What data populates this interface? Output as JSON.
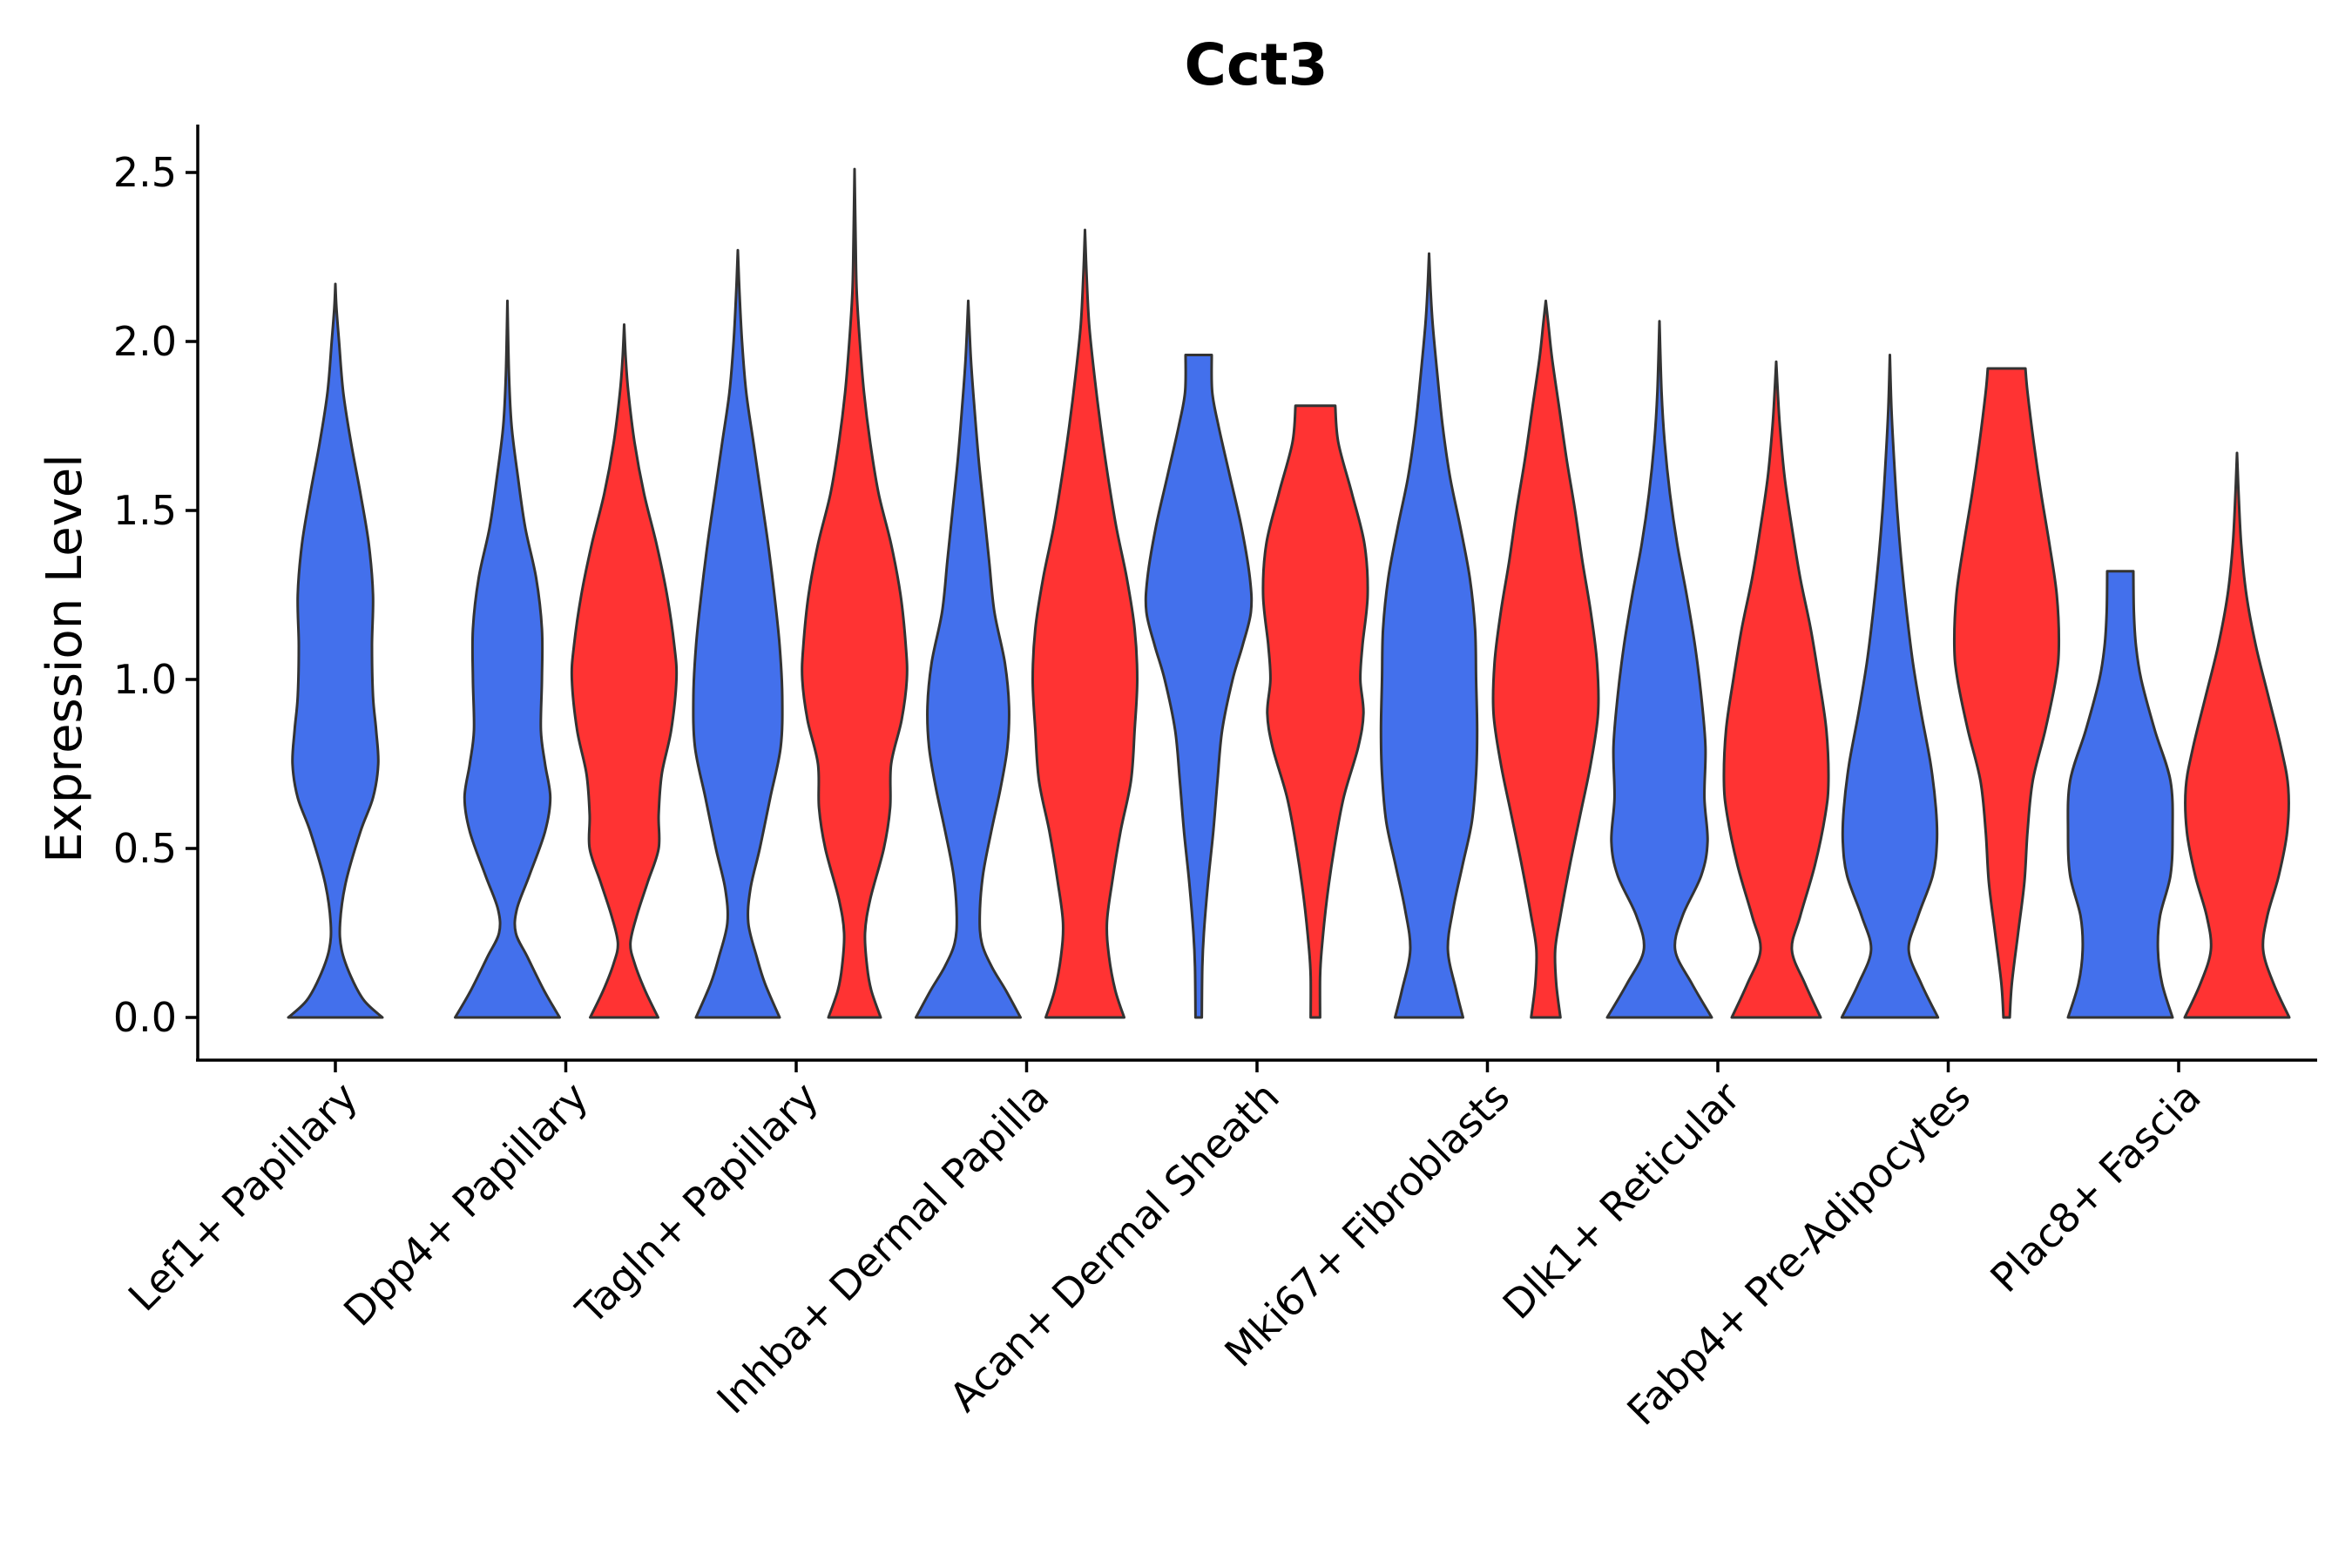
{
  "chart_data": {
    "type": "violin",
    "title": "Cct3",
    "xlabel": "",
    "ylabel": "Expression Level",
    "ylim": [
      -0.12,
      2.63
    ],
    "yticks": [
      0.0,
      0.5,
      1.0,
      1.5,
      2.0,
      2.5
    ],
    "ytick_labels": [
      "0.0",
      "0.5",
      "1.0",
      "1.5",
      "2.0",
      "2.5"
    ],
    "categories": [
      "Lef1+ Papillary",
      "Dpp4+ Papillary",
      "Tagln+ Papillary",
      "Inhba+ Dermal Papilla",
      "Acan+ Dermal Sheath",
      "Mki67+ Fibroblasts",
      "Dlk1+ Reticular",
      "Fabp4+ Pre-Adipocytes",
      "Plac8+ Fascia"
    ],
    "groups": [
      {
        "name": "blue",
        "color": "#4370EC"
      },
      {
        "name": "red",
        "color": "#FF3333"
      }
    ],
    "violins": [
      {
        "category": "Lef1+ Papillary",
        "group": "blue",
        "ymax": 2.17,
        "profile": [
          [
            0,
            0.9
          ],
          [
            0.05,
            0.55
          ],
          [
            0.12,
            0.3
          ],
          [
            0.2,
            0.12
          ],
          [
            0.28,
            0.09
          ],
          [
            0.4,
            0.2
          ],
          [
            0.55,
            0.48
          ],
          [
            0.65,
            0.72
          ],
          [
            0.75,
            0.82
          ],
          [
            0.85,
            0.78
          ],
          [
            0.95,
            0.72
          ],
          [
            1.1,
            0.7
          ],
          [
            1.25,
            0.72
          ],
          [
            1.4,
            0.64
          ],
          [
            1.55,
            0.48
          ],
          [
            1.7,
            0.3
          ],
          [
            1.85,
            0.15
          ],
          [
            2.0,
            0.07
          ],
          [
            2.1,
            0.02
          ],
          [
            2.17,
            0
          ]
        ]
      },
      {
        "category": "Dpp4+ Papillary",
        "group": "blue",
        "ymax": 2.12,
        "profile": [
          [
            0,
            1.0
          ],
          [
            0.08,
            0.7
          ],
          [
            0.18,
            0.38
          ],
          [
            0.25,
            0.16
          ],
          [
            0.32,
            0.18
          ],
          [
            0.42,
            0.42
          ],
          [
            0.55,
            0.72
          ],
          [
            0.65,
            0.82
          ],
          [
            0.75,
            0.72
          ],
          [
            0.85,
            0.64
          ],
          [
            1.0,
            0.66
          ],
          [
            1.15,
            0.66
          ],
          [
            1.3,
            0.55
          ],
          [
            1.45,
            0.34
          ],
          [
            1.6,
            0.2
          ],
          [
            1.75,
            0.08
          ],
          [
            1.9,
            0.03
          ],
          [
            2.12,
            0
          ]
        ]
      },
      {
        "category": "Dpp4+ Papillary",
        "group": "red",
        "ymax": 2.05,
        "profile": [
          [
            0,
            0.65
          ],
          [
            0.08,
            0.4
          ],
          [
            0.16,
            0.2
          ],
          [
            0.22,
            0.12
          ],
          [
            0.3,
            0.24
          ],
          [
            0.4,
            0.45
          ],
          [
            0.5,
            0.66
          ],
          [
            0.6,
            0.66
          ],
          [
            0.72,
            0.72
          ],
          [
            0.85,
            0.9
          ],
          [
            1.0,
            1.0
          ],
          [
            1.1,
            0.96
          ],
          [
            1.25,
            0.82
          ],
          [
            1.4,
            0.62
          ],
          [
            1.55,
            0.38
          ],
          [
            1.7,
            0.2
          ],
          [
            1.85,
            0.08
          ],
          [
            1.95,
            0.03
          ],
          [
            2.05,
            0
          ]
        ]
      },
      {
        "category": "Tagln+ Papillary",
        "group": "blue",
        "ymax": 2.27,
        "profile": [
          [
            0,
            0.8
          ],
          [
            0.1,
            0.52
          ],
          [
            0.18,
            0.36
          ],
          [
            0.28,
            0.2
          ],
          [
            0.38,
            0.24
          ],
          [
            0.5,
            0.42
          ],
          [
            0.65,
            0.62
          ],
          [
            0.8,
            0.82
          ],
          [
            0.95,
            0.85
          ],
          [
            1.1,
            0.8
          ],
          [
            1.25,
            0.7
          ],
          [
            1.4,
            0.58
          ],
          [
            1.55,
            0.44
          ],
          [
            1.7,
            0.3
          ],
          [
            1.85,
            0.16
          ],
          [
            2.0,
            0.08
          ],
          [
            2.15,
            0.03
          ],
          [
            2.27,
            0
          ]
        ]
      },
      {
        "category": "Tagln+ Papillary",
        "group": "red",
        "ymax": 2.51,
        "profile": [
          [
            0,
            0.5
          ],
          [
            0.08,
            0.32
          ],
          [
            0.15,
            0.24
          ],
          [
            0.25,
            0.2
          ],
          [
            0.35,
            0.3
          ],
          [
            0.5,
            0.56
          ],
          [
            0.62,
            0.68
          ],
          [
            0.75,
            0.7
          ],
          [
            0.88,
            0.9
          ],
          [
            1.0,
            1.0
          ],
          [
            1.1,
            0.98
          ],
          [
            1.25,
            0.88
          ],
          [
            1.4,
            0.7
          ],
          [
            1.55,
            0.46
          ],
          [
            1.7,
            0.3
          ],
          [
            1.85,
            0.18
          ],
          [
            2.0,
            0.1
          ],
          [
            2.15,
            0.04
          ],
          [
            2.3,
            0.02
          ],
          [
            2.51,
            0
          ]
        ]
      },
      {
        "category": "Inhba+ Dermal Papilla",
        "group": "blue",
        "ymax": 2.12,
        "profile": [
          [
            0,
            1.0
          ],
          [
            0.08,
            0.72
          ],
          [
            0.15,
            0.45
          ],
          [
            0.22,
            0.26
          ],
          [
            0.3,
            0.22
          ],
          [
            0.42,
            0.28
          ],
          [
            0.55,
            0.44
          ],
          [
            0.68,
            0.62
          ],
          [
            0.8,
            0.75
          ],
          [
            0.92,
            0.78
          ],
          [
            1.05,
            0.7
          ],
          [
            1.2,
            0.5
          ],
          [
            1.35,
            0.4
          ],
          [
            1.5,
            0.3
          ],
          [
            1.65,
            0.2
          ],
          [
            1.8,
            0.12
          ],
          [
            1.95,
            0.05
          ],
          [
            2.12,
            0
          ]
        ]
      },
      {
        "category": "Inhba+ Dermal Papilla",
        "group": "red",
        "ymax": 2.33,
        "profile": [
          [
            0,
            0.75
          ],
          [
            0.08,
            0.58
          ],
          [
            0.18,
            0.46
          ],
          [
            0.28,
            0.42
          ],
          [
            0.4,
            0.52
          ],
          [
            0.55,
            0.68
          ],
          [
            0.7,
            0.88
          ],
          [
            0.85,
            0.95
          ],
          [
            1.0,
            1.0
          ],
          [
            1.15,
            0.95
          ],
          [
            1.3,
            0.8
          ],
          [
            1.45,
            0.6
          ],
          [
            1.6,
            0.44
          ],
          [
            1.75,
            0.3
          ],
          [
            1.9,
            0.18
          ],
          [
            2.05,
            0.08
          ],
          [
            2.2,
            0.03
          ],
          [
            2.33,
            0
          ]
        ]
      },
      {
        "category": "Acan+ Dermal Sheath",
        "group": "blue",
        "ymax": 1.96,
        "profile": [
          [
            0,
            0.06
          ],
          [
            0.15,
            0.07
          ],
          [
            0.25,
            0.1
          ],
          [
            0.4,
            0.18
          ],
          [
            0.55,
            0.28
          ],
          [
            0.7,
            0.36
          ],
          [
            0.85,
            0.45
          ],
          [
            1.0,
            0.65
          ],
          [
            1.1,
            0.84
          ],
          [
            1.2,
            1.0
          ],
          [
            1.3,
            0.98
          ],
          [
            1.45,
            0.82
          ],
          [
            1.6,
            0.6
          ],
          [
            1.75,
            0.38
          ],
          [
            1.85,
            0.26
          ],
          [
            1.96,
            0.25
          ]
        ]
      },
      {
        "category": "Acan+ Dermal Sheath",
        "group": "red",
        "ymax": 1.81,
        "profile": [
          [
            0,
            0.09
          ],
          [
            0.12,
            0.09
          ],
          [
            0.2,
            0.12
          ],
          [
            0.35,
            0.22
          ],
          [
            0.5,
            0.36
          ],
          [
            0.65,
            0.54
          ],
          [
            0.8,
            0.82
          ],
          [
            0.9,
            0.92
          ],
          [
            1.0,
            0.86
          ],
          [
            1.1,
            0.9
          ],
          [
            1.25,
            1.0
          ],
          [
            1.4,
            0.94
          ],
          [
            1.55,
            0.7
          ],
          [
            1.7,
            0.44
          ],
          [
            1.81,
            0.38
          ]
        ]
      },
      {
        "category": "Mki67+ Fibroblasts",
        "group": "blue",
        "ymax": 2.26,
        "profile": [
          [
            0,
            0.65
          ],
          [
            0.08,
            0.52
          ],
          [
            0.2,
            0.36
          ],
          [
            0.32,
            0.46
          ],
          [
            0.45,
            0.64
          ],
          [
            0.58,
            0.82
          ],
          [
            0.72,
            0.9
          ],
          [
            0.85,
            0.92
          ],
          [
            1.0,
            0.9
          ],
          [
            1.15,
            0.88
          ],
          [
            1.3,
            0.78
          ],
          [
            1.45,
            0.6
          ],
          [
            1.6,
            0.4
          ],
          [
            1.75,
            0.26
          ],
          [
            1.9,
            0.16
          ],
          [
            2.05,
            0.07
          ],
          [
            2.15,
            0.03
          ],
          [
            2.26,
            0
          ]
        ]
      },
      {
        "category": "Mki67+ Fibroblasts",
        "group": "red",
        "ymax": 2.12,
        "profile": [
          [
            0,
            0.28
          ],
          [
            0.1,
            0.2
          ],
          [
            0.2,
            0.18
          ],
          [
            0.3,
            0.28
          ],
          [
            0.45,
            0.46
          ],
          [
            0.6,
            0.66
          ],
          [
            0.75,
            0.86
          ],
          [
            0.9,
            1.0
          ],
          [
            1.05,
            0.98
          ],
          [
            1.2,
            0.86
          ],
          [
            1.35,
            0.7
          ],
          [
            1.5,
            0.56
          ],
          [
            1.65,
            0.4
          ],
          [
            1.8,
            0.26
          ],
          [
            1.95,
            0.12
          ],
          [
            2.05,
            0.05
          ],
          [
            2.12,
            0
          ]
        ]
      },
      {
        "category": "Dlk1+ Reticular",
        "group": "blue",
        "ymax": 2.06,
        "profile": [
          [
            0,
            1.0
          ],
          [
            0.1,
            0.62
          ],
          [
            0.2,
            0.3
          ],
          [
            0.3,
            0.44
          ],
          [
            0.42,
            0.8
          ],
          [
            0.52,
            0.92
          ],
          [
            0.65,
            0.86
          ],
          [
            0.8,
            0.88
          ],
          [
            0.95,
            0.8
          ],
          [
            1.1,
            0.68
          ],
          [
            1.25,
            0.52
          ],
          [
            1.4,
            0.34
          ],
          [
            1.55,
            0.2
          ],
          [
            1.7,
            0.1
          ],
          [
            1.85,
            0.04
          ],
          [
            2.06,
            0
          ]
        ]
      },
      {
        "category": "Dlk1+ Reticular",
        "group": "red",
        "ymax": 1.94,
        "profile": [
          [
            0,
            0.85
          ],
          [
            0.1,
            0.55
          ],
          [
            0.2,
            0.3
          ],
          [
            0.3,
            0.46
          ],
          [
            0.45,
            0.74
          ],
          [
            0.6,
            0.94
          ],
          [
            0.7,
            1.0
          ],
          [
            0.85,
            0.96
          ],
          [
            1.0,
            0.82
          ],
          [
            1.15,
            0.66
          ],
          [
            1.3,
            0.46
          ],
          [
            1.45,
            0.3
          ],
          [
            1.6,
            0.16
          ],
          [
            1.75,
            0.07
          ],
          [
            1.85,
            0.03
          ],
          [
            1.94,
            0
          ]
        ]
      },
      {
        "category": "Fabp4+ Pre-Adipocytes",
        "group": "blue",
        "ymax": 1.96,
        "profile": [
          [
            0,
            0.92
          ],
          [
            0.1,
            0.6
          ],
          [
            0.2,
            0.36
          ],
          [
            0.3,
            0.54
          ],
          [
            0.42,
            0.82
          ],
          [
            0.52,
            0.9
          ],
          [
            0.62,
            0.88
          ],
          [
            0.75,
            0.78
          ],
          [
            0.9,
            0.6
          ],
          [
            1.05,
            0.44
          ],
          [
            1.2,
            0.32
          ],
          [
            1.35,
            0.22
          ],
          [
            1.5,
            0.14
          ],
          [
            1.65,
            0.08
          ],
          [
            1.8,
            0.03
          ],
          [
            1.96,
            0
          ]
        ]
      },
      {
        "category": "Fabp4+ Pre-Adipocytes",
        "group": "red",
        "ymax": 1.92,
        "profile": [
          [
            0,
            0.06
          ],
          [
            0.1,
            0.1
          ],
          [
            0.25,
            0.22
          ],
          [
            0.4,
            0.34
          ],
          [
            0.55,
            0.4
          ],
          [
            0.7,
            0.5
          ],
          [
            0.85,
            0.74
          ],
          [
            1.0,
            0.94
          ],
          [
            1.1,
            1.0
          ],
          [
            1.25,
            0.96
          ],
          [
            1.4,
            0.82
          ],
          [
            1.55,
            0.66
          ],
          [
            1.7,
            0.52
          ],
          [
            1.85,
            0.4
          ],
          [
            1.92,
            0.36
          ]
        ]
      },
      {
        "category": "Plac8+ Fascia",
        "group": "blue",
        "ymax": 1.32,
        "profile": [
          [
            0,
            1.0
          ],
          [
            0.1,
            0.8
          ],
          [
            0.2,
            0.72
          ],
          [
            0.3,
            0.76
          ],
          [
            0.42,
            0.96
          ],
          [
            0.55,
            1.0
          ],
          [
            0.7,
            0.96
          ],
          [
            0.85,
            0.66
          ],
          [
            1.0,
            0.4
          ],
          [
            1.1,
            0.3
          ],
          [
            1.2,
            0.26
          ],
          [
            1.32,
            0.25
          ]
        ]
      },
      {
        "category": "Plac8+ Fascia",
        "group": "red",
        "ymax": 1.67,
        "profile": [
          [
            0,
            1.0
          ],
          [
            0.1,
            0.7
          ],
          [
            0.2,
            0.5
          ],
          [
            0.3,
            0.58
          ],
          [
            0.42,
            0.8
          ],
          [
            0.55,
            0.96
          ],
          [
            0.68,
            0.98
          ],
          [
            0.8,
            0.84
          ],
          [
            0.95,
            0.6
          ],
          [
            1.1,
            0.36
          ],
          [
            1.25,
            0.18
          ],
          [
            1.4,
            0.08
          ],
          [
            1.55,
            0.03
          ],
          [
            1.67,
            0
          ]
        ]
      }
    ]
  }
}
